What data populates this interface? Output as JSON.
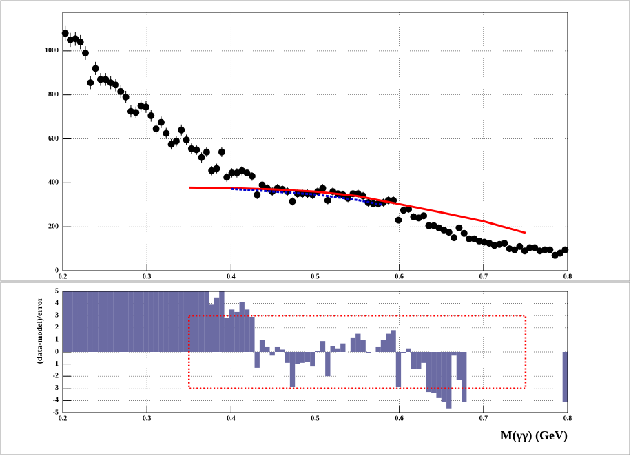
{
  "chart_data": [
    {
      "type": "scatter",
      "color": "#000000",
      "grid": true,
      "xlim": [
        0.2,
        0.8
      ],
      "ylim": [
        0,
        1175
      ],
      "xticks": [
        0.2,
        0.3,
        0.4,
        0.5,
        0.6,
        0.7,
        0.8
      ],
      "yticks": [
        0,
        200,
        400,
        600,
        800,
        1000
      ],
      "x": [
        0.203,
        0.209,
        0.215,
        0.221,
        0.227,
        0.233,
        0.239,
        0.245,
        0.251,
        0.257,
        0.263,
        0.269,
        0.275,
        0.281,
        0.287,
        0.293,
        0.299,
        0.305,
        0.311,
        0.317,
        0.323,
        0.329,
        0.335,
        0.341,
        0.347,
        0.353,
        0.359,
        0.365,
        0.371,
        0.377,
        0.383,
        0.389,
        0.395,
        0.401,
        0.407,
        0.413,
        0.419,
        0.425,
        0.431,
        0.437,
        0.443,
        0.449,
        0.455,
        0.461,
        0.467,
        0.473,
        0.479,
        0.485,
        0.491,
        0.497,
        0.503,
        0.509,
        0.515,
        0.521,
        0.527,
        0.533,
        0.539,
        0.545,
        0.551,
        0.557,
        0.563,
        0.569,
        0.575,
        0.581,
        0.587,
        0.593,
        0.599,
        0.605,
        0.611,
        0.617,
        0.623,
        0.629,
        0.635,
        0.641,
        0.647,
        0.653,
        0.659,
        0.665,
        0.671,
        0.677,
        0.683,
        0.689,
        0.695,
        0.701,
        0.707,
        0.713,
        0.719,
        0.725,
        0.731,
        0.737,
        0.743,
        0.749,
        0.755,
        0.761,
        0.767,
        0.773,
        0.779,
        0.785,
        0.791,
        0.797
      ],
      "values": [
        1080,
        1050,
        1055,
        1040,
        990,
        855,
        920,
        870,
        870,
        855,
        845,
        815,
        790,
        725,
        720,
        750,
        745,
        705,
        645,
        675,
        625,
        575,
        590,
        640,
        595,
        555,
        550,
        515,
        540,
        455,
        465,
        540,
        425,
        445,
        445,
        455,
        445,
        430,
        345,
        390,
        375,
        360,
        375,
        370,
        360,
        315,
        350,
        350,
        350,
        345,
        360,
        375,
        320,
        360,
        350,
        345,
        330,
        350,
        350,
        340,
        310,
        305,
        305,
        310,
        320,
        320,
        230,
        275,
        280,
        245,
        240,
        250,
        205,
        205,
        195,
        185,
        175,
        150,
        195,
        170,
        145,
        145,
        135,
        130,
        125,
        115,
        120,
        125,
        100,
        95,
        110,
        90,
        105,
        105,
        90,
        95,
        95,
        70,
        80,
        95
      ],
      "errors": [
        33,
        32,
        32,
        32,
        31,
        29,
        30,
        29,
        29,
        29,
        29,
        29,
        28,
        27,
        27,
        27,
        27,
        27,
        25,
        26,
        25,
        24,
        24,
        25,
        24,
        24,
        23,
        23,
        23,
        21,
        22,
        23,
        21,
        21,
        21,
        21,
        21,
        21,
        19,
        20,
        19,
        19,
        19,
        19,
        19,
        18,
        19,
        19,
        19,
        19,
        19,
        19,
        18,
        19,
        19,
        19,
        18,
        19,
        19,
        18,
        18,
        17,
        17,
        18,
        18,
        18,
        15,
        17,
        17,
        16,
        15,
        16,
        14,
        14,
        14,
        14,
        13,
        12,
        14,
        13,
        12,
        12,
        12,
        11,
        11,
        11,
        11,
        11,
        10,
        10,
        10,
        9,
        10,
        10,
        9,
        10,
        10,
        8,
        9,
        10
      ],
      "fits": [
        {
          "color": "#ff0000",
          "style": "solid",
          "x": [
            0.35,
            0.4,
            0.45,
            0.5,
            0.55,
            0.6,
            0.65,
            0.7,
            0.75
          ],
          "values": [
            378,
            376,
            370,
            360,
            340,
            303,
            265,
            225,
            172
          ]
        },
        {
          "color": "#0000cc",
          "style": "dashed",
          "x": [
            0.4,
            0.45,
            0.5,
            0.55,
            0.58
          ],
          "values": [
            372,
            360,
            347,
            322,
            300
          ]
        }
      ]
    },
    {
      "type": "histogram",
      "color": "#6b6ba3",
      "grid": true,
      "xlim": [
        0.2,
        0.8
      ],
      "ylim": [
        -5,
        5
      ],
      "xticks": [
        0.2,
        0.3,
        0.4,
        0.5,
        0.6,
        0.7,
        0.8
      ],
      "yticks": [
        -5,
        -4,
        -3,
        -2,
        -1,
        0,
        1,
        2,
        3,
        4,
        5
      ],
      "ylabel": "(data-model)/error",
      "xlabel": "M(γγ) (GeV)",
      "bins": [
        0.2,
        0.206,
        0.212,
        0.218,
        0.224,
        0.23,
        0.236,
        0.242,
        0.248,
        0.254,
        0.26,
        0.266,
        0.272,
        0.278,
        0.284,
        0.29,
        0.296,
        0.302,
        0.308,
        0.314,
        0.32,
        0.326,
        0.332,
        0.338,
        0.344,
        0.35,
        0.356,
        0.362,
        0.368,
        0.374,
        0.38,
        0.386,
        0.392,
        0.398,
        0.404,
        0.41,
        0.416,
        0.422,
        0.428,
        0.434,
        0.44,
        0.446,
        0.452,
        0.458,
        0.464,
        0.47,
        0.476,
        0.482,
        0.488,
        0.494,
        0.5,
        0.506,
        0.512,
        0.518,
        0.524,
        0.53,
        0.536,
        0.542,
        0.548,
        0.554,
        0.56,
        0.566,
        0.572,
        0.578,
        0.584,
        0.59,
        0.596,
        0.602,
        0.608,
        0.614,
        0.62,
        0.626,
        0.632,
        0.638,
        0.644,
        0.65,
        0.656,
        0.662,
        0.668,
        0.674,
        0.68,
        0.686,
        0.692,
        0.698,
        0.704,
        0.71,
        0.716,
        0.722,
        0.728,
        0.734,
        0.74,
        0.746,
        0.752,
        0.758,
        0.764,
        0.77,
        0.776,
        0.782,
        0.788,
        0.794,
        0.8
      ],
      "values": [
        5,
        5,
        5,
        5,
        5,
        5,
        5,
        5,
        5,
        5,
        5,
        5,
        5,
        5,
        5,
        5,
        5,
        5,
        5,
        5,
        5,
        5,
        5,
        5,
        5,
        5,
        5,
        5,
        5,
        3.9,
        4.5,
        5,
        2.8,
        3.5,
        3.3,
        4.1,
        3.5,
        2.9,
        -1.3,
        1.0,
        0.4,
        -0.3,
        0.4,
        0.2,
        -0.9,
        -2.9,
        -1.0,
        -0.9,
        -0.8,
        -1.2,
        0.1,
        0.9,
        -2.0,
        0.5,
        0.3,
        0.7,
        0,
        1.2,
        1.5,
        1.0,
        -0.1,
        0,
        0.4,
        1.0,
        1.5,
        1.8,
        -2.9,
        -0.1,
        0.3,
        -1.4,
        -1.4,
        -0.9,
        -3.3,
        -3.4,
        -3.8,
        -4.1,
        -4.7,
        -0.3,
        -2.3,
        -4.1,
        0,
        0,
        0,
        0,
        0,
        0,
        0,
        0,
        0,
        0,
        0,
        0,
        0,
        0,
        0,
        0,
        0,
        0,
        0,
        -4.1
      ],
      "region": {
        "x": [
          0.35,
          0.75
        ],
        "y": [
          -3,
          3
        ],
        "color": "#ff0000"
      }
    }
  ]
}
